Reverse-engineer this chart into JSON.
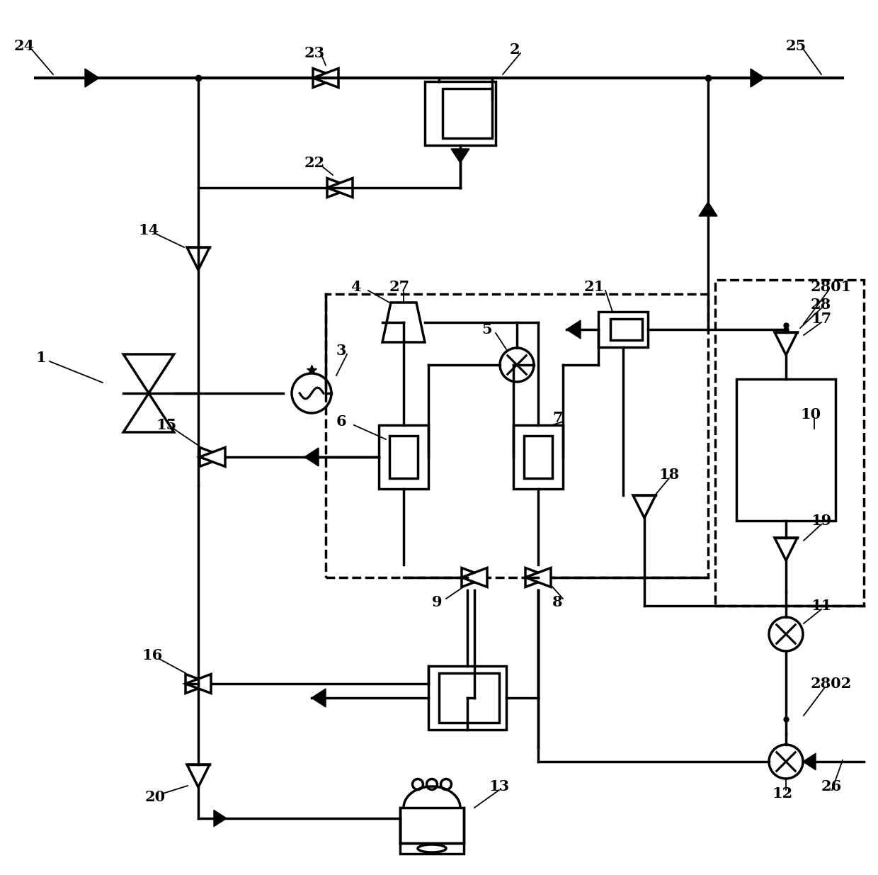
{
  "bg_color": "#ffffff",
  "line_color": "#000000",
  "lw": 2.5,
  "fig_width": 12.4,
  "fig_height": 12.35,
  "dpi": 100
}
